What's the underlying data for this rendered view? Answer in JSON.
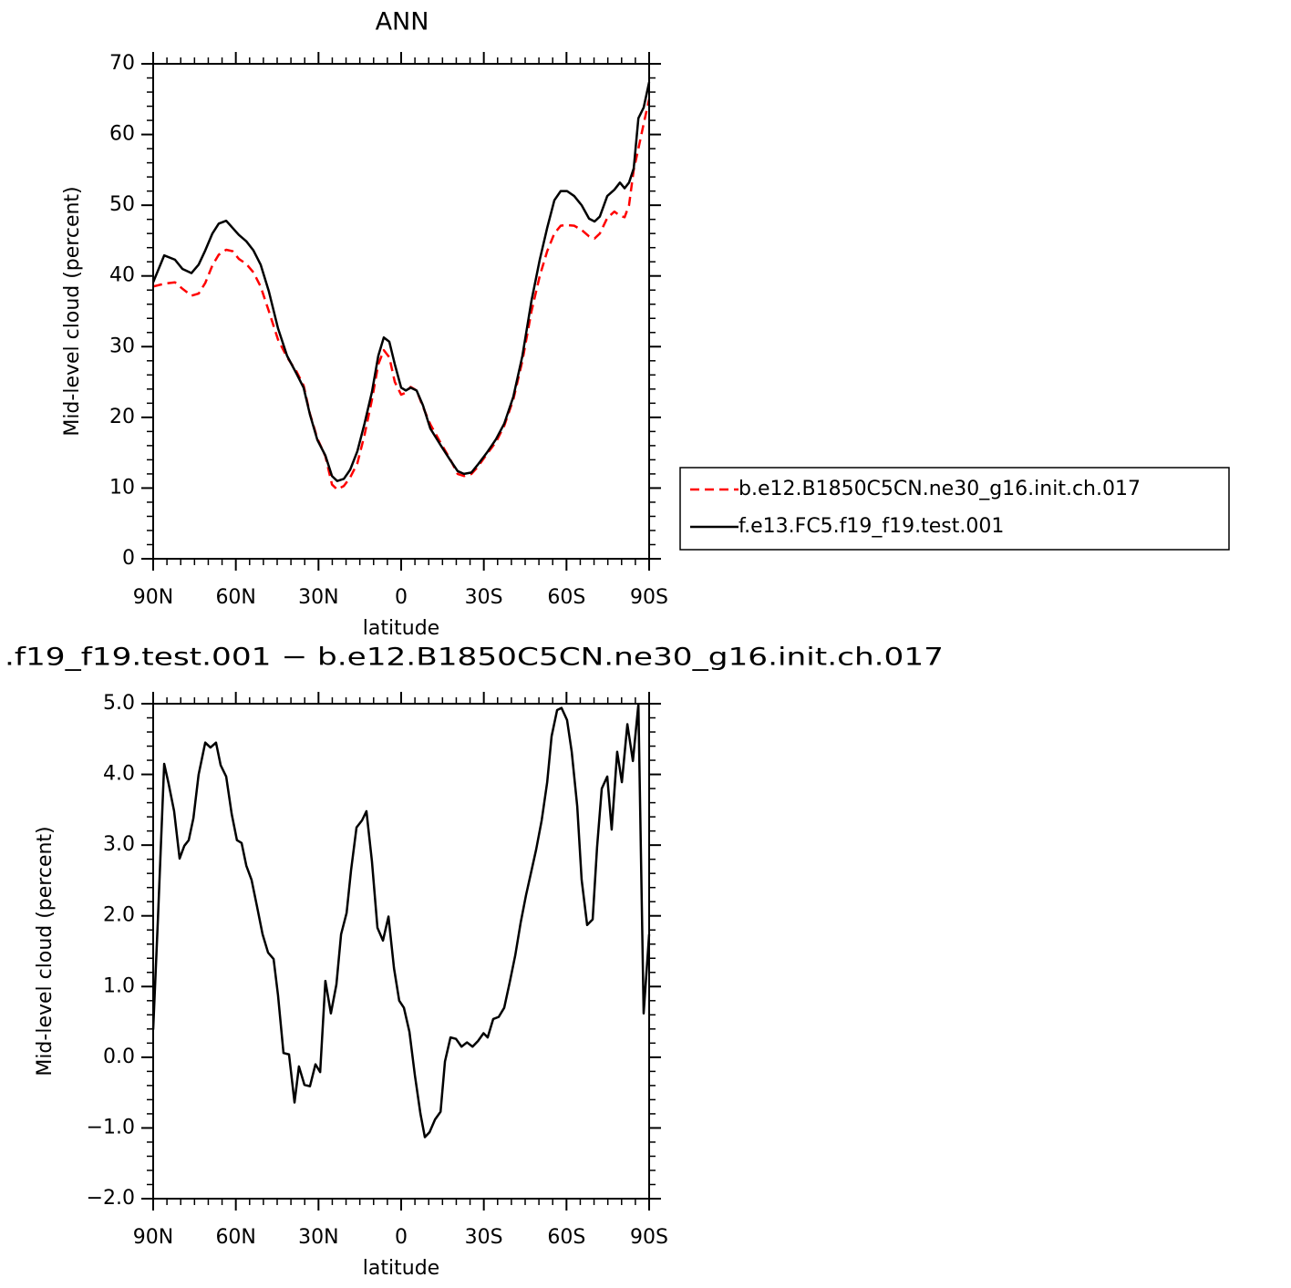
{
  "chart_data": [
    {
      "type": "line",
      "title": "ANN",
      "xlabel": "latitude",
      "ylabel": "Mid-level cloud (percent)",
      "x": [
        90,
        86.0,
        82.1,
        79.4,
        76.1,
        73.5,
        71.1,
        68.5,
        66.2,
        63.5,
        61.2,
        58.9,
        56.2,
        53.6,
        51.0,
        48.0,
        44.7,
        41.4,
        38.0,
        35.4,
        33.1,
        30.4,
        27.5,
        25.1,
        23.2,
        20.8,
        18.5,
        15.9,
        13.3,
        10.6,
        8.3,
        6.3,
        4.3,
        2.3,
        0,
        -1.7,
        -3.4,
        -5.6,
        -7.9,
        -10.6,
        -14.6,
        -17.9,
        -20.5,
        -22.8,
        -25.5,
        -27.8,
        -31.1,
        -34.4,
        -37.4,
        -40.7,
        -44.0,
        -47.3,
        -50.3,
        -53.0,
        -55.6,
        -57.9,
        -60.2,
        -62.8,
        -65.5,
        -68.2,
        -70.2,
        -72.1,
        -74.8,
        -77.4,
        -79.4,
        -81.1,
        -82.7,
        -84.4,
        -86.1,
        -88.0,
        -90
      ],
      "series": [
        {
          "name": "b.e12.B1850C5CN.ne30_g16.init.ch.017",
          "color": "#ff0000",
          "linestyle": "dashed",
          "values": [
            38.5,
            38.9,
            39.1,
            38.2,
            37.2,
            37.5,
            39.0,
            41.5,
            43.0,
            43.7,
            43.5,
            42.4,
            41.7,
            40.5,
            38.5,
            35.0,
            31.0,
            28.5,
            26.5,
            24.5,
            20.5,
            17.0,
            14.5,
            10.5,
            9.8,
            10.3,
            11.5,
            13.5,
            17.5,
            22.5,
            27.5,
            29.5,
            28.5,
            25.0,
            23.2,
            23.5,
            24.3,
            23.8,
            21.5,
            19.0,
            16.2,
            14.0,
            12.0,
            11.7,
            12.0,
            13.0,
            14.8,
            16.5,
            18.8,
            22.5,
            28.0,
            35.0,
            40.0,
            43.5,
            46.0,
            47.1,
            47.2,
            47.1,
            46.5,
            45.6,
            45.3,
            46.0,
            48.2,
            49.1,
            48.5,
            48.3,
            50.0,
            55.0,
            58.0,
            61.5,
            65.0
          ]
        },
        {
          "name": "f.e13.FC5.f19_f19.test.001",
          "color": "#000000",
          "linestyle": "solid",
          "values": [
            39.1,
            42.9,
            42.3,
            41.0,
            40.4,
            41.6,
            43.6,
            46.0,
            47.4,
            47.8,
            46.8,
            45.8,
            44.9,
            43.6,
            41.6,
            37.8,
            32.6,
            28.7,
            26.2,
            24.2,
            20.4,
            16.8,
            14.6,
            11.7,
            11.0,
            11.3,
            12.6,
            15.2,
            19.1,
            23.6,
            28.7,
            31.3,
            30.7,
            27.5,
            24.2,
            23.8,
            24.2,
            23.8,
            21.7,
            18.4,
            15.9,
            13.9,
            12.4,
            12.0,
            12.2,
            13.3,
            15.0,
            16.9,
            19.1,
            22.9,
            28.7,
            36.5,
            42.3,
            46.8,
            50.7,
            52.0,
            52.0,
            51.3,
            50.0,
            48.1,
            47.7,
            48.4,
            51.3,
            52.2,
            53.2,
            52.4,
            53.2,
            55.2,
            62.3,
            63.8,
            67.4
          ]
        }
      ],
      "xlim": [
        90,
        -90
      ],
      "xticks": [
        {
          "value": 90,
          "label": "90N"
        },
        {
          "value": 60,
          "label": "60N"
        },
        {
          "value": 30,
          "label": "30N"
        },
        0,
        {
          "value": -30,
          "label": "30S"
        },
        {
          "value": -60,
          "label": "60S"
        },
        {
          "value": -90,
          "label": "90S"
        }
      ],
      "ylim": [
        0,
        70
      ],
      "yticks": [
        0,
        10,
        20,
        30,
        40,
        50,
        60,
        70
      ],
      "grid": false,
      "legend": "right"
    },
    {
      "type": "line",
      "title": ".f19_f19.test.001 − b.e12.B1850C5CN.ne30_g16.init.ch.017",
      "xlabel": "latitude",
      "ylabel": "Mid-level cloud (percent)",
      "x": [
        90,
        88.3,
        86.0,
        84.4,
        82.4,
        80.4,
        78.7,
        77.1,
        75.4,
        73.5,
        71.1,
        69.2,
        67.2,
        65.5,
        63.5,
        61.5,
        59.6,
        57.9,
        56.2,
        54.3,
        52.3,
        50.3,
        48.3,
        46.3,
        44.7,
        42.7,
        40.7,
        38.7,
        37.1,
        35.1,
        33.1,
        31.1,
        29.4,
        27.5,
        25.5,
        23.5,
        21.8,
        19.8,
        18.2,
        16.2,
        14.2,
        12.6,
        10.6,
        8.6,
        6.6,
        4.6,
        2.6,
        0.7,
        -1.0,
        -3.0,
        -5.0,
        -7.0,
        -8.6,
        -10.3,
        -12.3,
        -14.3,
        -15.9,
        -17.9,
        -19.9,
        -21.9,
        -23.9,
        -25.9,
        -27.9,
        -29.9,
        -31.4,
        -33.4,
        -35.4,
        -37.4,
        -39.4,
        -41.4,
        -43.4,
        -45.3,
        -47.3,
        -49.0,
        -51.0,
        -53.0,
        -54.6,
        -56.6,
        -58.2,
        -60.2,
        -61.9,
        -63.9,
        -65.5,
        -67.5,
        -69.5,
        -71.1,
        -72.8,
        -74.8,
        -76.4,
        -78.4,
        -80.1,
        -82.1,
        -84.1,
        -86.1,
        -88.0,
        -90
      ],
      "values": [
        0.39,
        1.93,
        4.15,
        3.87,
        3.48,
        2.81,
        2.99,
        3.07,
        3.38,
        4.0,
        4.45,
        4.38,
        4.45,
        4.13,
        3.97,
        3.44,
        3.07,
        3.03,
        2.71,
        2.51,
        2.13,
        1.74,
        1.48,
        1.39,
        0.88,
        0.06,
        0.04,
        -0.64,
        -0.13,
        -0.39,
        -0.41,
        -0.1,
        -0.21,
        1.08,
        0.62,
        1.03,
        1.74,
        2.04,
        2.64,
        3.25,
        3.35,
        3.48,
        2.77,
        1.83,
        1.65,
        1.99,
        1.26,
        0.8,
        0.7,
        0.36,
        -0.26,
        -0.8,
        -1.13,
        -1.06,
        -0.88,
        -0.77,
        -0.06,
        0.28,
        0.26,
        0.15,
        0.21,
        0.15,
        0.23,
        0.34,
        0.28,
        0.54,
        0.57,
        0.7,
        1.06,
        1.44,
        1.91,
        2.29,
        2.64,
        2.94,
        3.35,
        3.89,
        4.54,
        4.91,
        4.94,
        4.77,
        4.32,
        3.55,
        2.51,
        1.87,
        1.95,
        2.97,
        3.8,
        3.97,
        3.22,
        4.32,
        3.89,
        4.71,
        4.19,
        4.99,
        0.62,
        1.74
      ],
      "color": "#000000",
      "xlim": [
        90,
        -90
      ],
      "xticks": [
        {
          "value": 90,
          "label": "90N"
        },
        {
          "value": 60,
          "label": "60N"
        },
        {
          "value": 30,
          "label": "30N"
        },
        0,
        {
          "value": -30,
          "label": "30S"
        },
        {
          "value": -60,
          "label": "60S"
        },
        {
          "value": -90,
          "label": "90S"
        }
      ],
      "ylim": [
        -2,
        5
      ],
      "yticks": [
        {
          "value": 5,
          "label": "5.0"
        },
        {
          "value": 4,
          "label": "4.0"
        },
        {
          "value": 3,
          "label": "3.0"
        },
        {
          "value": 2,
          "label": "2.0"
        },
        {
          "value": 1,
          "label": "1.0"
        },
        {
          "value": 0,
          "label": "0.0"
        },
        {
          "value": -1,
          "label": "−1.0"
        },
        {
          "value": -2,
          "label": "−2.0"
        }
      ],
      "grid": false
    }
  ]
}
